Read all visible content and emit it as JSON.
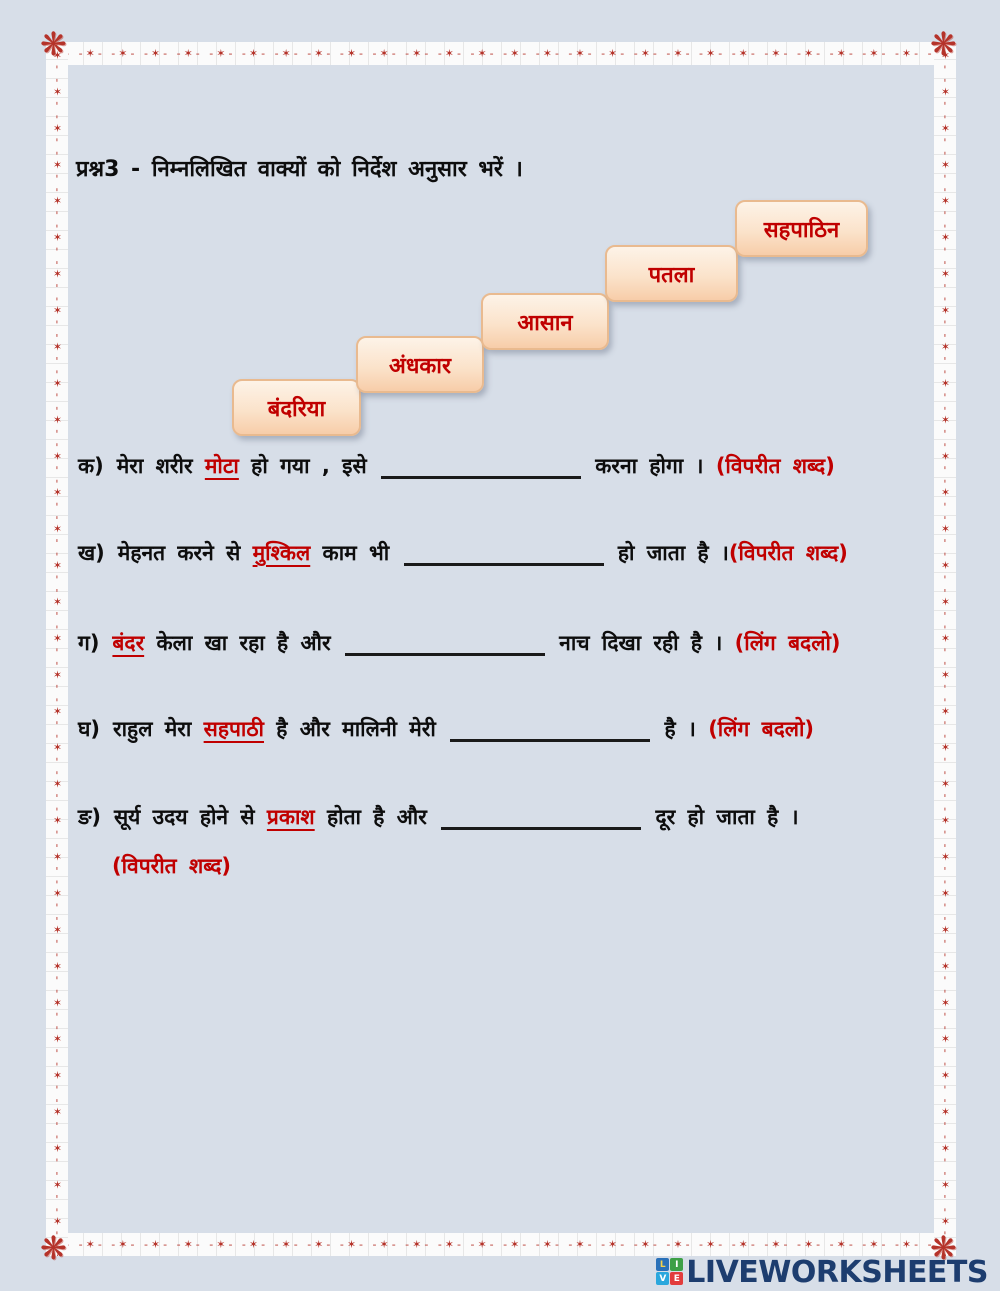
{
  "page": {
    "background": "#d7dee8",
    "frame_red": "#b5332a"
  },
  "title": "प्रश्न3 - निम्नलिखित वाक्यों को निर्देश अनुसार भरें ।",
  "word_bank": {
    "card_text_color": "#c00000",
    "card_bg": "#fbe3cb",
    "card_border": "#e9ba8f",
    "words": [
      "बंदरिया",
      "अंधकार",
      "आसान",
      "पतला",
      "सहपाठिन"
    ]
  },
  "questions": [
    {
      "label": "क)",
      "segments": [
        {
          "text": "मेरा शरीर "
        },
        {
          "text": "मोटा",
          "style": "red-underline"
        },
        {
          "text": " हो गया , इसे "
        },
        {
          "blank": true
        },
        {
          "text": " करना होगा । "
        },
        {
          "text": "(विपरीत शब्द)",
          "style": "hint"
        }
      ]
    },
    {
      "label": "ख)",
      "segments": [
        {
          "text": "मेहनत करने से "
        },
        {
          "text": "मुश्किल",
          "style": "red-underline"
        },
        {
          "text": " काम भी "
        },
        {
          "blank": true
        },
        {
          "text": " हो जाता है ।"
        },
        {
          "text": "(विपरीत शब्द)",
          "style": "hint"
        }
      ]
    },
    {
      "label": "ग)",
      "segments": [
        {
          "text": "बंदर",
          "style": "red-underline"
        },
        {
          "text": " केला खा रहा है और "
        },
        {
          "blank": true
        },
        {
          "text": " नाच दिखा रही है । "
        },
        {
          "text": "(लिंग बदलो)",
          "style": "hint"
        }
      ]
    },
    {
      "label": "घ)",
      "segments": [
        {
          "text": "राहुल मेरा "
        },
        {
          "text": "सहपाठी",
          "style": "red-underline"
        },
        {
          "text": " है और मालिनी मेरी "
        },
        {
          "blank": true
        },
        {
          "text": " है । "
        },
        {
          "text": "(लिंग बदलो)",
          "style": "hint"
        }
      ]
    },
    {
      "label": "ङ)",
      "segments": [
        {
          "text": "सूर्य उदय होने से "
        },
        {
          "text": "प्रकाश",
          "style": "red-underline"
        },
        {
          "text": " होता है और "
        },
        {
          "blank": true
        },
        {
          "text": " दूर हो जाता है ।"
        }
      ],
      "hint_line2": "(विपरीत शब्द)"
    }
  ],
  "footer": {
    "brand": "LIVEWORKSHEETS",
    "brand_color": "#1d3d6f",
    "logo_letters": [
      {
        "letter": "L",
        "bg": "#2a71b9",
        "fg": "#f7d24a"
      },
      {
        "letter": "I",
        "bg": "#3da047",
        "fg": "#ffffff"
      },
      {
        "letter": "V",
        "bg": "#2aa7dd",
        "fg": "#ffffff"
      },
      {
        "letter": "E",
        "bg": "#e23c3c",
        "fg": "#ffffff"
      }
    ]
  }
}
